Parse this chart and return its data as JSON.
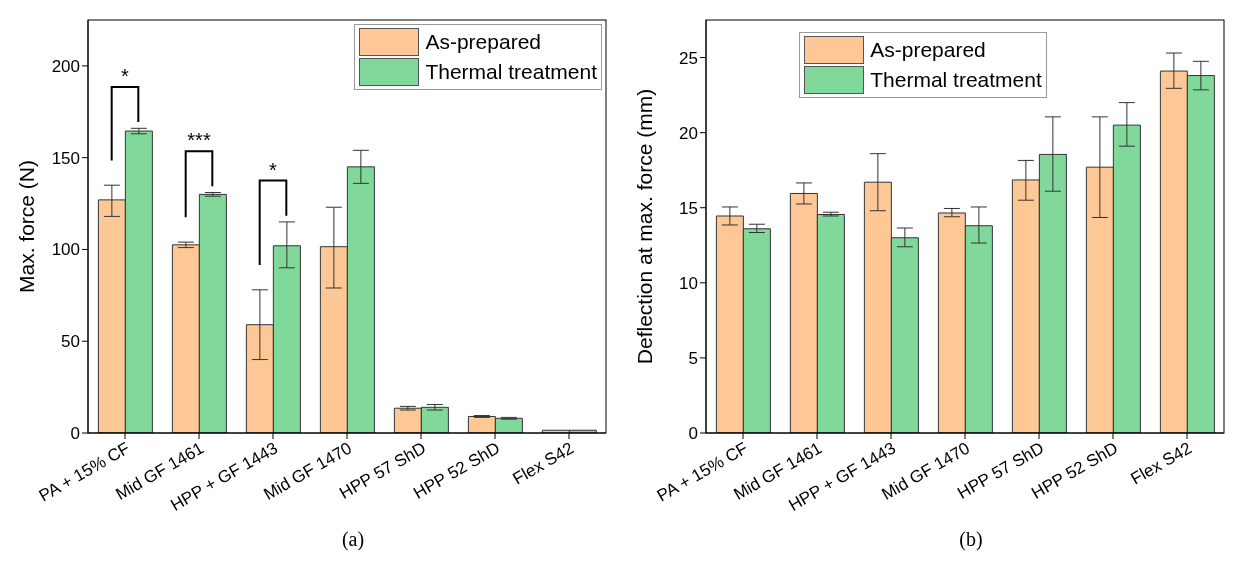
{
  "chart_data": [
    {
      "type": "bar",
      "title": "(a)",
      "ylabel": "Max. force (N)",
      "categories": [
        "PA + 15% CF",
        "Mid GF 1461",
        "HPP + GF 1443",
        "Mid GF 1470",
        "HPP 57 ShD",
        "HPP 52 ShD",
        "Flex S42"
      ],
      "series": [
        {
          "name": "As-prepared",
          "color": "#fdc895",
          "values": [
            127,
            102.5,
            59,
            101.5,
            13.5,
            9,
            1.5
          ],
          "errors": [
            [
              118,
              135
            ],
            [
              101,
              104
            ],
            [
              40,
              78
            ],
            [
              79,
              123
            ],
            [
              12.5,
              14.5
            ],
            [
              8.5,
              9.5
            ],
            null
          ]
        },
        {
          "name": "Thermal treatment",
          "color": "#80d99b",
          "values": [
            164.5,
            130,
            102,
            145,
            14,
            8,
            1.5
          ],
          "errors": [
            [
              163,
              166
            ],
            [
              129,
              131
            ],
            [
              90,
              115
            ],
            [
              136,
              154
            ],
            [
              12.5,
              15.5
            ],
            [
              7.5,
              8.5
            ],
            null
          ]
        }
      ],
      "ylim": [
        0,
        225
      ],
      "yticks": [
        0,
        50,
        100,
        150,
        200
      ],
      "grid": false,
      "legend": "top right",
      "annotations": [
        "*",
        "***",
        "*"
      ]
    },
    {
      "type": "bar",
      "title": "(b)",
      "ylabel": "Deflection at max. force (mm)",
      "categories": [
        "PA + 15% CF",
        "Mid GF 1461",
        "HPP + GF 1443",
        "Mid GF 1470",
        "HPP 57 ShD",
        "HPP 52 ShD",
        "Flex S42"
      ],
      "series": [
        {
          "name": "As-prepared",
          "color": "#fdc895",
          "values": [
            14.45,
            15.95,
            16.7,
            14.65,
            16.85,
            17.7,
            24.1
          ],
          "errors": [
            [
              13.85,
              15.05
            ],
            [
              15.25,
              16.65
            ],
            [
              14.8,
              18.6
            ],
            [
              14.4,
              14.95
            ],
            [
              15.5,
              18.15
            ],
            [
              14.35,
              21.05
            ],
            [
              22.95,
              25.3
            ]
          ]
        },
        {
          "name": "Thermal treatment",
          "color": "#80d99b",
          "values": [
            13.6,
            14.55,
            13.0,
            13.8,
            18.55,
            20.5,
            23.8
          ],
          "errors": [
            [
              13.35,
              13.9
            ],
            [
              14.45,
              14.7
            ],
            [
              12.4,
              13.65
            ],
            [
              12.65,
              15.05
            ],
            [
              16.1,
              21.05
            ],
            [
              19.1,
              22.0
            ],
            [
              22.85,
              24.75
            ]
          ]
        }
      ],
      "ylim": [
        0,
        27.5
      ],
      "yticks": [
        0,
        5,
        10,
        15,
        20,
        25
      ],
      "grid": false,
      "legend": "top"
    }
  ]
}
